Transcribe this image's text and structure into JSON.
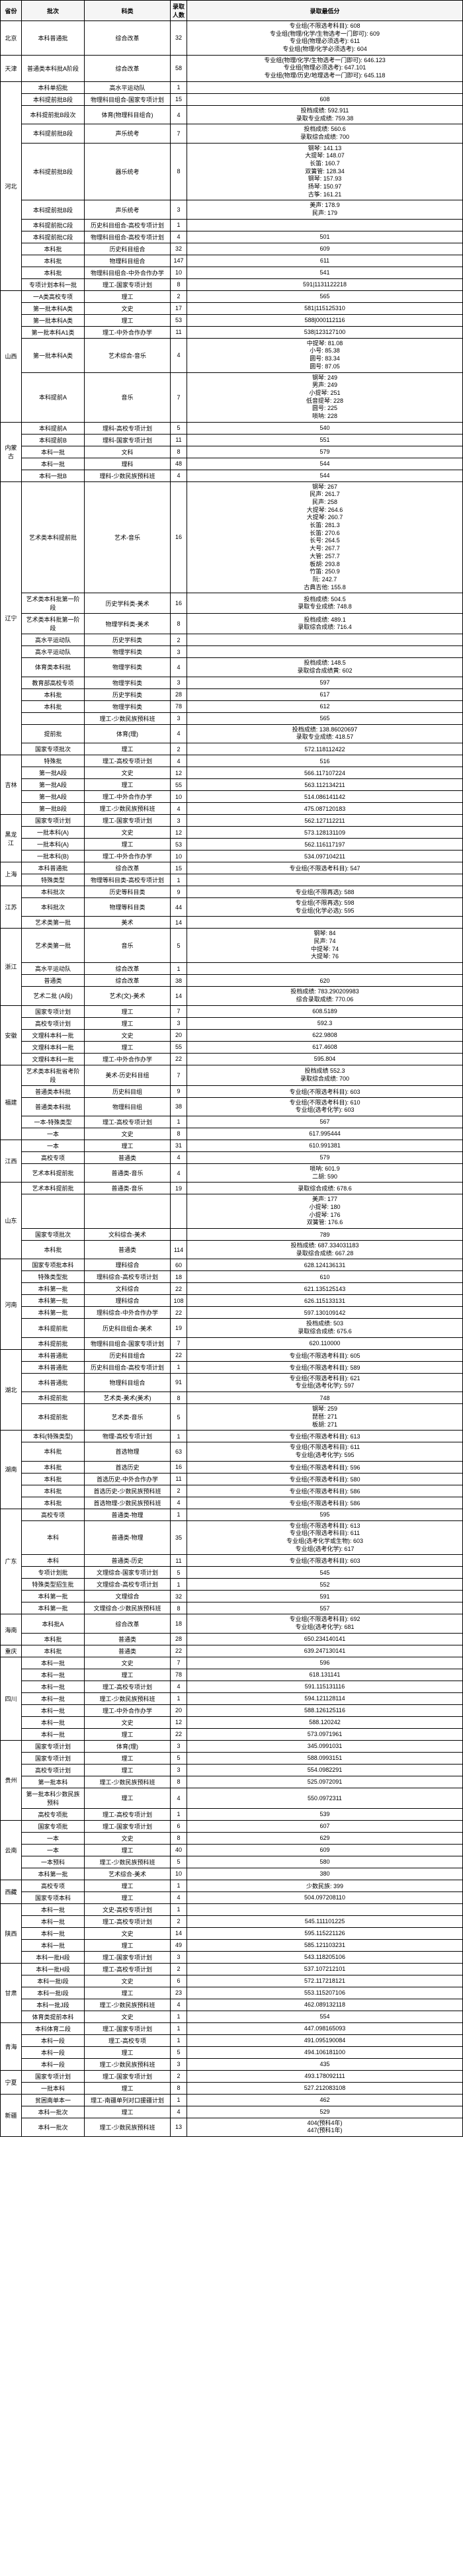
{
  "headers": [
    "省份",
    "批次",
    "科类",
    "录取人数",
    "录取最低分"
  ],
  "provinces": [
    {
      "name": "北京",
      "rows": [
        [
          "本科普通批",
          "综合改革",
          "32",
          "专业组(不限选考科目): 608\n专业组(物理/化学/生物选考一门即可): 609\n专业组(物理必须选考): 611\n专业组(物理/化学必须选考): 604"
        ]
      ]
    },
    {
      "name": "天津",
      "rows": [
        [
          "普通类本科批A阶段",
          "综合改革",
          "58",
          "专业组(物理/化学/生物选考一门即可): 646.123\n专业组(物理必须选考): 647.101\n专业组(物理/历史/地理选考一门即可): 645.118"
        ]
      ]
    },
    {
      "name": "河北",
      "rows": [
        [
          "本科单招批",
          "高水平运动队",
          "1",
          ""
        ],
        [
          "本科提前批B段",
          "物理科目组合-国家专项计划",
          "15",
          "608"
        ],
        [
          "本科提前批B段次",
          "体育(物理科目组合)",
          "4",
          "投档成绩: 592.911\n录取专业成绩: 759.38"
        ],
        [
          "本科提前批B段",
          "声乐统考",
          "7",
          "投档成绩: 560.6\n录取综合成绩: 700"
        ],
        [
          "本科提前批B段",
          "器乐统考",
          "8",
          "钢琴: 141.13\n大提琴: 148.07\n长笛: 160.7\n双簧管: 128.34\n钢琴: 157.93\n扬琴: 150.97\n古筝: 161.21"
        ],
        [
          "本科提前批B段",
          "声乐统考",
          "3",
          "美声: 178.9\n民声: 179"
        ],
        [
          "本科提前批C段",
          "历史科目组合-高校专项计划",
          "1",
          ""
        ],
        [
          "本科提前批C段",
          "物理科目组合-高校专项计划",
          "4",
          "501"
        ],
        [
          "本科批",
          "历史科目组合",
          "32",
          "609"
        ],
        [
          "本科批",
          "物理科目组合",
          "147",
          "611"
        ],
        [
          "本科批",
          "物理科目组合-中外合作办学",
          "10",
          "541"
        ],
        [
          "专项计划本科一批",
          "理工-国家专项计划",
          "8",
          "591|1131122218"
        ]
      ]
    },
    {
      "name": "山西",
      "rows": [
        [
          "一A类高校专项",
          "理工",
          "2",
          "565"
        ],
        [
          "第一批本科A类",
          "文史",
          "17",
          "581|115125310"
        ],
        [
          "第一批本科A类",
          "理工",
          "53",
          "588|000112116"
        ],
        [
          "第一批本科A1类",
          "理工-中外合作办学",
          "11",
          "538|123127100"
        ],
        [
          "第一批本科A类",
          "艺术综合-音乐",
          "4",
          "中提琴: 81.08\n小号: 85.38\n圆号: 83.34\n圆号: 87.05"
        ],
        [
          "本科提前A",
          "音乐",
          "7",
          "钢琴: 249\n男声: 249\n小提琴: 251\n低音提琴: 228\n圆号: 225\n唢呐: 228"
        ]
      ]
    },
    {
      "name": "内蒙古",
      "rows": [
        [
          "本科提前A",
          "理科-高校专项计划",
          "5",
          "540"
        ],
        [
          "本科提前B",
          "理科-国家专项计划",
          "11",
          "551"
        ],
        [
          "本科一批",
          "文科",
          "8",
          "579"
        ],
        [
          "本科一批",
          "理科",
          "48",
          "544"
        ],
        [
          "本科一批B",
          "理科-少数民族预科班",
          "4",
          "544"
        ]
      ]
    },
    {
      "name": "辽宁",
      "rows": [
        [
          "艺术类本科提前批",
          "艺术-音乐",
          "16",
          "钢琴: 267\n民声: 261.7\n民声: 258\n大提琴: 264.6\n大提琴: 260.7\n长笛: 281.3\n长笛: 270.6\n长号: 264.5\n大号: 267.7\n大管: 257.7\n板胡: 293.8\n竹笛: 250.9\n阮: 242.7\n古典吉他: 155.8"
        ],
        [
          "艺术类本科批第一阶段",
          "历史学科类-美术",
          "16",
          "投档成绩: 504.5\n录取专业成绩: 748.8"
        ],
        [
          "艺术类本科批第一阶段",
          "物理学科类-美术",
          "8",
          "投档成绩: 489.1\n录取综合成绩: 716.4"
        ],
        [
          "高水平运动队",
          "历史学科类",
          "2",
          ""
        ],
        [
          "高水平运动队",
          "物理学科类",
          "3",
          ""
        ],
        [
          "体育类本科批",
          "物理学科类",
          "4",
          "投档成绩: 148.5\n录取综合成绩黄: 602"
        ],
        [
          "教育部高校专项",
          "物理学科类",
          "3",
          "597"
        ],
        [
          "本科批",
          "历史学科类",
          "28",
          "617"
        ],
        [
          "本科批",
          "物理学科类",
          "78",
          "612"
        ],
        [
          "",
          "理工-少数民族预科班",
          "3",
          "565"
        ],
        [
          "提前批",
          "体育(理)",
          "4",
          "投档成绩: 138.86020697\n录取专业成绩: 418.57"
        ],
        [
          "国家专项批次",
          "理工",
          "2",
          "572.118112422"
        ]
      ]
    },
    {
      "name": "吉林",
      "rows": [
        [
          "特殊批",
          "理工-高校专项计划",
          "4",
          "516"
        ],
        [
          "第一批A段",
          "文史",
          "12",
          "566.117107224"
        ],
        [
          "第一批A段",
          "理工",
          "55",
          "563.112134211"
        ],
        [
          "第一批A段",
          "理工-中外合作办学",
          "10",
          "514.086141142"
        ],
        [
          "第一批B段",
          "理工-少数民族预科班",
          "4",
          "475.087120183"
        ]
      ]
    },
    {
      "name": "黑龙江",
      "rows": [
        [
          "国家专项计划",
          "理工-国家专项计划",
          "3",
          "562.127112211"
        ],
        [
          "一批本科(A)",
          "文史",
          "12",
          "573.128131109"
        ],
        [
          "一批本科(A)",
          "理工",
          "53",
          "562.116117197"
        ],
        [
          "一批本科(B)",
          "理工-中外合作办学",
          "10",
          "534.097104211"
        ]
      ]
    },
    {
      "name": "上海",
      "rows": [
        [
          "本科普通批",
          "综合改革",
          "15",
          "专业组(不限选考科目): 547"
        ],
        [
          "特殊类型",
          "物理等科目类-高校专项计划",
          "1",
          ""
        ]
      ]
    },
    {
      "name": "江苏",
      "rows": [
        [
          "本科批次",
          "历史等科目类",
          "9",
          "专业组(不限再选): 588"
        ],
        [
          "本科批次",
          "物理等科目类",
          "44",
          "专业组(不限再选): 598\n专业组(化学必选): 595"
        ],
        [
          "艺术类第一批",
          "美术",
          "14",
          ""
        ]
      ]
    },
    {
      "name": "浙江",
      "rows": [
        [
          "艺术类第一批",
          "音乐",
          "5",
          "钢琴: 84\n民声: 74\n中提琴: 74\n大提琴: 76"
        ],
        [
          "高水平运动队",
          "综合改革",
          "1",
          ""
        ],
        [
          "普通类",
          "综合改革",
          "38",
          "620"
        ],
        [
          "艺术二批 (A段)",
          "艺术(文)-美术",
          "14",
          "投档成绩: 783.290209983\n综合录取成绩: 770.06"
        ]
      ]
    },
    {
      "name": "安徽",
      "rows": [
        [
          "国家专项计划",
          "理工",
          "7",
          "608.5189"
        ],
        [
          "高校专项计划",
          "理工",
          "3",
          "592.3"
        ],
        [
          "文理科本科一批",
          "文史",
          "20",
          "622.9808"
        ],
        [
          "文理科本科一批",
          "理工",
          "55",
          "617.4608"
        ],
        [
          "文理科本科一批",
          "理工-中外合作办学",
          "22",
          "595.804"
        ]
      ]
    },
    {
      "name": "福建",
      "rows": [
        [
          "艺术类本科批省考阶段",
          "美术-历史科目组",
          "7",
          "投档成绩 552.3\n录取综合成绩: 700"
        ],
        [
          "普通类本科批",
          "历史科目组",
          "9",
          "专业组(不限选考科目): 603"
        ],
        [
          "普通类本科批",
          "物理科目组",
          "38",
          "专业组(不限选考科目): 610\n专业组(选考化学): 603"
        ],
        [
          "一本-特殊类型",
          "理工-高校专项计划",
          "1",
          "567"
        ],
        [
          "一本",
          "文史",
          "8",
          "617.995444"
        ]
      ]
    },
    {
      "name": "江西",
      "rows": [
        [
          "一本",
          "理工",
          "31",
          "610.991381"
        ],
        [
          "高校专项",
          "普通类",
          "4",
          "579"
        ],
        [
          "艺术本科提前批",
          "普通类-音乐",
          "4",
          "唢呐: 601.9\n二胡: 590"
        ]
      ]
    },
    {
      "name": "山东",
      "rows": [
        [
          "艺术本科提前批",
          "普通类-音乐",
          "19",
          "录取综合成绩: 678.6"
        ],
        [
          "",
          "",
          "",
          "美声: 177\n小提琴: 180\n小提琴: 176\n双簧管: 176.6"
        ],
        [
          "国家专项批次",
          "文科综合-美术",
          "",
          "789"
        ],
        [
          "本科批",
          "普通类",
          "114",
          "投档成绩: 687.334031183\n录取综合成绩: 667.28"
        ]
      ]
    },
    {
      "name": "河南",
      "rows": [
        [
          "国家专项批本科",
          "理科综合",
          "60",
          "628.124136131"
        ],
        [
          "特殊类型批",
          "理科综合-高校专项计划",
          "18",
          "610"
        ],
        [
          "本科第一批",
          "文科综合",
          "22",
          "621.135125143"
        ],
        [
          "本科第一批",
          "理科综合",
          "108",
          "626.115133131"
        ],
        [
          "本科第一批",
          "理科综合-中外合作办学",
          "22",
          "597.130109142"
        ],
        [
          "本科提前批",
          "历史科目组合-美术",
          "19",
          "投档成绩: 503\n录取综合成绩: 675.6"
        ],
        [
          "本科提前批",
          "物理科目组合-国家专项计划",
          "7",
          "620.110000"
        ]
      ]
    },
    {
      "name": "湖北",
      "rows": [
        [
          "本科普通批",
          "历史科目组合",
          "22",
          "专业组(不限选考科目): 605"
        ],
        [
          "本科普通批",
          "历史科目组合-高校专项计划",
          "1",
          "专业组(不限选考科目): 589"
        ],
        [
          "本科普通批",
          "物理科目组合",
          "91",
          "专业组(不限选考科目): 621\n专业组(选考化学): 597"
        ],
        [
          "本科提前批",
          "艺术类-美术(美术)",
          "8",
          "748"
        ],
        [
          "本科提前批",
          "艺术类-音乐",
          "5",
          "钢琴: 259\n琵琶: 271\n板胡: 271"
        ]
      ]
    },
    {
      "name": "湖南",
      "rows": [
        [
          "本科(特殊类型)",
          "物理-高校专项计划",
          "1",
          "专业组(不限选考科目): 613"
        ],
        [
          "本科批",
          "首选物理",
          "63",
          "专业组(不限选考科目): 611\n专业组(选考化学): 595"
        ],
        [
          "本科批",
          "首选历史",
          "16",
          "专业组(不限选考科目): 596"
        ],
        [
          "本科批",
          "首选历史-中外合作办学",
          "11",
          "专业组(不限选考科目): 580"
        ],
        [
          "本科批",
          "首选历史-少数民族预科班",
          "2",
          "专业组(不限选考科目): 586"
        ],
        [
          "本科批",
          "首选物理-少数民族预科班",
          "4",
          "专业组(不限选考科目): 586"
        ]
      ]
    },
    {
      "name": "广东",
      "rows": [
        [
          "高校专项",
          "普通类-物理",
          "1",
          "595"
        ],
        [
          "本科",
          "普通类-物理",
          "35",
          "专业组(不限选考科目): 613\n专业组(不限选考科目): 611\n专业组(选考化学或生物): 603\n专业组(选考化学): 617"
        ],
        [
          "本科",
          "普通类-历史",
          "11",
          "专业组(不限选考科目): 603"
        ],
        [
          "专项计划批",
          "文理综合-国家专项计划",
          "5",
          "545"
        ],
        [
          "特殊类型招生批",
          "文理综合-高校专项计划",
          "1",
          "552"
        ],
        [
          "本科第一批",
          "文理综合",
          "32",
          "591"
        ],
        [
          "本科第一批",
          "文理综合-少数民族预科班",
          "8",
          "557"
        ]
      ]
    },
    {
      "name": "海南",
      "rows": [
        [
          "本科批A",
          "综合改革",
          "18",
          "专业组(不限选考科目): 692\n专业组(选考化学): 681"
        ],
        [
          "本科批",
          "普通类",
          "28",
          "650.234140141"
        ]
      ]
    },
    {
      "name": "重庆",
      "rows": [
        [
          "本科批",
          "普通类",
          "22",
          "639.247130141"
        ]
      ]
    },
    {
      "name": "四川",
      "rows": [
        [
          "本科一批",
          "文史",
          "7",
          "596"
        ],
        [
          "本科一批",
          "理工",
          "78",
          "618.131141"
        ],
        [
          "本科一批",
          "理工-高校专项计划",
          "4",
          "591.115131116"
        ],
        [
          "本科一批",
          "理工-少数民族预科班",
          "1",
          "594.121128114"
        ],
        [
          "本科一批",
          "理工-中外合作办学",
          "20",
          "588.126125116"
        ],
        [
          "本科一批",
          "文史",
          "12",
          "588.120242"
        ],
        [
          "本科一批",
          "理工",
          "22",
          "573.0971961"
        ]
      ]
    },
    {
      "name": "贵州",
      "rows": [
        [
          "国家专项计划",
          "体育(理)",
          "3",
          "345.0991031"
        ],
        [
          "国家专项计划",
          "理工",
          "5",
          "588.0993151"
        ],
        [
          "高校专项计划",
          "理工",
          "3",
          "554.0982291"
        ],
        [
          "第一批本科",
          "理工-少数民族预科班",
          "8",
          "525.0972091"
        ],
        [
          "第一批本科少数民族预科",
          "理工",
          "4",
          "550.0972311"
        ],
        [
          "高校专项批",
          "理工-高校专项计划",
          "1",
          "539"
        ]
      ]
    },
    {
      "name": "云南",
      "rows": [
        [
          "国家专项批",
          "理工-国家专项计划",
          "6",
          "607"
        ],
        [
          "一本",
          "文史",
          "8",
          "629"
        ],
        [
          "一本",
          "理工",
          "40",
          "609"
        ],
        [
          "一本预科",
          "理工-少数民族预科班",
          "5",
          "580"
        ],
        [
          "本科第一批",
          "艺术综合-美术",
          "10",
          "380"
        ]
      ]
    },
    {
      "name": "西藏",
      "rows": [
        [
          "高校专项",
          "理工",
          "1",
          "少数民族: 399"
        ],
        [
          "国家专项本科",
          "理工",
          "4",
          "504.097208110"
        ]
      ]
    },
    {
      "name": "陕西",
      "rows": [
        [
          "本科一批",
          "文史-高校专项计划",
          "1",
          ""
        ],
        [
          "本科一批",
          "理工-高校专项计划",
          "2",
          "545.111101225"
        ],
        [
          "本科一批",
          "文史",
          "14",
          "595.115221126"
        ],
        [
          "本科一批",
          "理工",
          "49",
          "585.121103231"
        ],
        [
          "本科一批H段",
          "理工-国家专项计划",
          "3",
          "543.118205106"
        ]
      ]
    },
    {
      "name": "甘肃",
      "rows": [
        [
          "本科一批H段",
          "理工-高校专项计划",
          "2",
          "537.107212101"
        ],
        [
          "本科一批I段",
          "文史",
          "6",
          "572.117218121"
        ],
        [
          "本科一批I段",
          "理工",
          "23",
          "553.115207106"
        ],
        [
          "本科一批J段",
          "理工-少数民族预科班",
          "4",
          "462.089132118"
        ],
        [
          "体育类提前本科",
          "文史",
          "1",
          "554"
        ]
      ]
    },
    {
      "name": "青海",
      "rows": [
        [
          "本科体育二段",
          "理工-国家专项计划",
          "1",
          "447.098165093"
        ],
        [
          "本科一段",
          "理工-高校专项",
          "1",
          "491.095190084"
        ],
        [
          "本科一段",
          "理工",
          "5",
          "494.106181100"
        ],
        [
          "本科一段",
          "理工-少数民族预科班",
          "3",
          "435"
        ]
      ]
    },
    {
      "name": "宁夏",
      "rows": [
        [
          "国家专项计划",
          "理工-国家专项计划",
          "2",
          "493.178092111"
        ],
        [
          "一批本科",
          "理工",
          "8",
          "527.212083108"
        ]
      ]
    },
    {
      "name": "新疆",
      "rows": [
        [
          "贫困南单本一",
          "理工-南疆单列对口援疆计划",
          "1",
          "462"
        ],
        [
          "本科一批次",
          "理工",
          "4",
          "529"
        ],
        [
          "本科一批次",
          "理工-少数民族预科班",
          "13",
          "404(预科4年)\n447(预科1年)"
        ]
      ]
    }
  ]
}
